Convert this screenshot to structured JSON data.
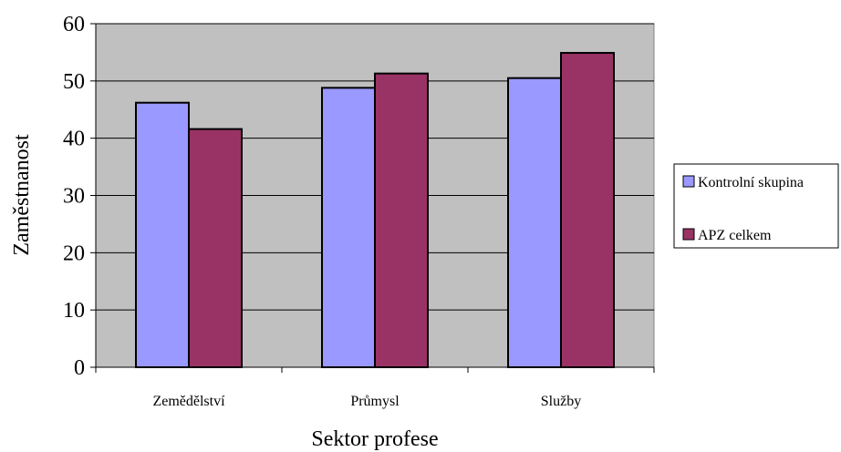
{
  "chart_data": {
    "type": "bar",
    "title": "",
    "xlabel": "Sektor profese",
    "ylabel": "Zaměstnanost",
    "categories": [
      "Zemědělství",
      "Průmysl",
      "Služby"
    ],
    "series": [
      {
        "name": "Kontrolní skupina",
        "values": [
          46.2,
          48.8,
          50.5
        ],
        "color": "#9999ff"
      },
      {
        "name": "APZ celkem",
        "values": [
          41.6,
          51.3,
          54.9
        ],
        "color": "#993366"
      }
    ],
    "ylim": [
      0,
      60
    ],
    "yticks": [
      0,
      10,
      20,
      30,
      40,
      50,
      60
    ],
    "grid": true,
    "legend_position": "right",
    "plot_background": "#c0c0c0"
  }
}
